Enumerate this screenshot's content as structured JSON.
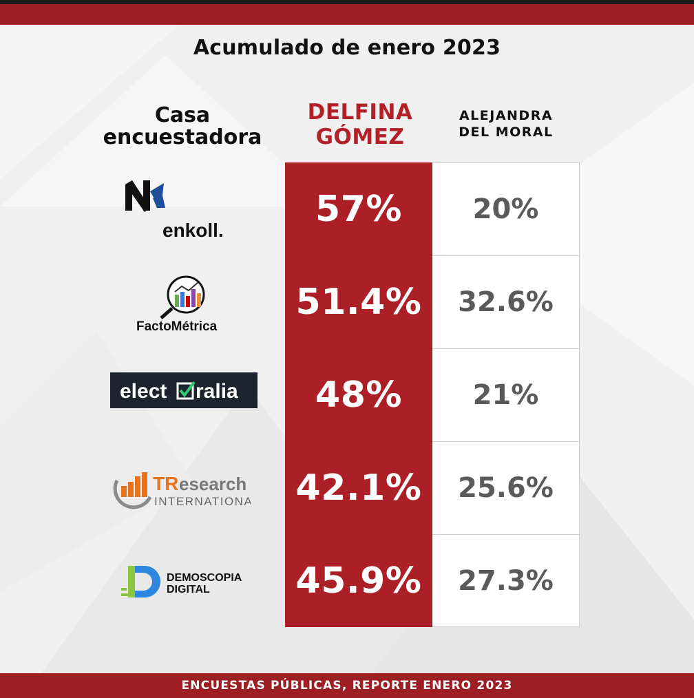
{
  "title": "Acumulado de enero 2023",
  "headers": {
    "house_line1": "Casa",
    "house_line2": "encuestadora",
    "candidate1_line1": "DELFINA",
    "candidate1_line2": "GÓMEZ",
    "candidate2_line1": "ALEJANDRA",
    "candidate2_line2": "DEL MORAL"
  },
  "rows": [
    {
      "pollster": "enkoll.",
      "delfina": "57%",
      "alejandra": "20%"
    },
    {
      "pollster": "FactoMétrica",
      "delfina": "51.4%",
      "alejandra": "32.6%"
    },
    {
      "pollster": "electoralia",
      "delfina": "48%",
      "alejandra": "21%"
    },
    {
      "pollster": "TResearch INTERNATIONAL",
      "delfina": "42.1%",
      "alejandra": "25.6%"
    },
    {
      "pollster": "DEMOSCOPIA DIGITAL",
      "delfina": "45.9%",
      "alejandra": "27.3%"
    }
  ],
  "logos": {
    "enkoll_text": "enkoll.",
    "facto_text": "FactoMétrica",
    "electoralia_text_a": "elect",
    "electoralia_text_b": "ralia",
    "tresearch_text_a": "TR",
    "tresearch_text_b": "esearch",
    "tresearch_text_c": "INTERNATIONAL",
    "demoscopia_line1": "DEMOSCOPIA",
    "demoscopia_line2": "DIGITAL"
  },
  "footer": "ENCUESTAS PÚBLICAS, REPORTE ENERO 2023",
  "colors": {
    "brand_red": "#ad1f26",
    "bar_red": "#9d1f23",
    "value_gray": "#5a5a5a"
  },
  "chart_data": {
    "type": "table",
    "title": "Acumulado de enero 2023",
    "columns": [
      "Casa encuestadora",
      "DELFINA GÓMEZ",
      "ALEJANDRA DEL MORAL"
    ],
    "categories": [
      "enkoll.",
      "FactoMétrica",
      "electoralia",
      "TResearch INTERNATIONAL",
      "DEMOSCOPIA DIGITAL"
    ],
    "series": [
      {
        "name": "DELFINA GÓMEZ",
        "values": [
          57,
          51.4,
          48,
          42.1,
          45.9
        ]
      },
      {
        "name": "ALEJANDRA DEL MORAL",
        "values": [
          20,
          32.6,
          21,
          25.6,
          27.3
        ]
      }
    ]
  }
}
